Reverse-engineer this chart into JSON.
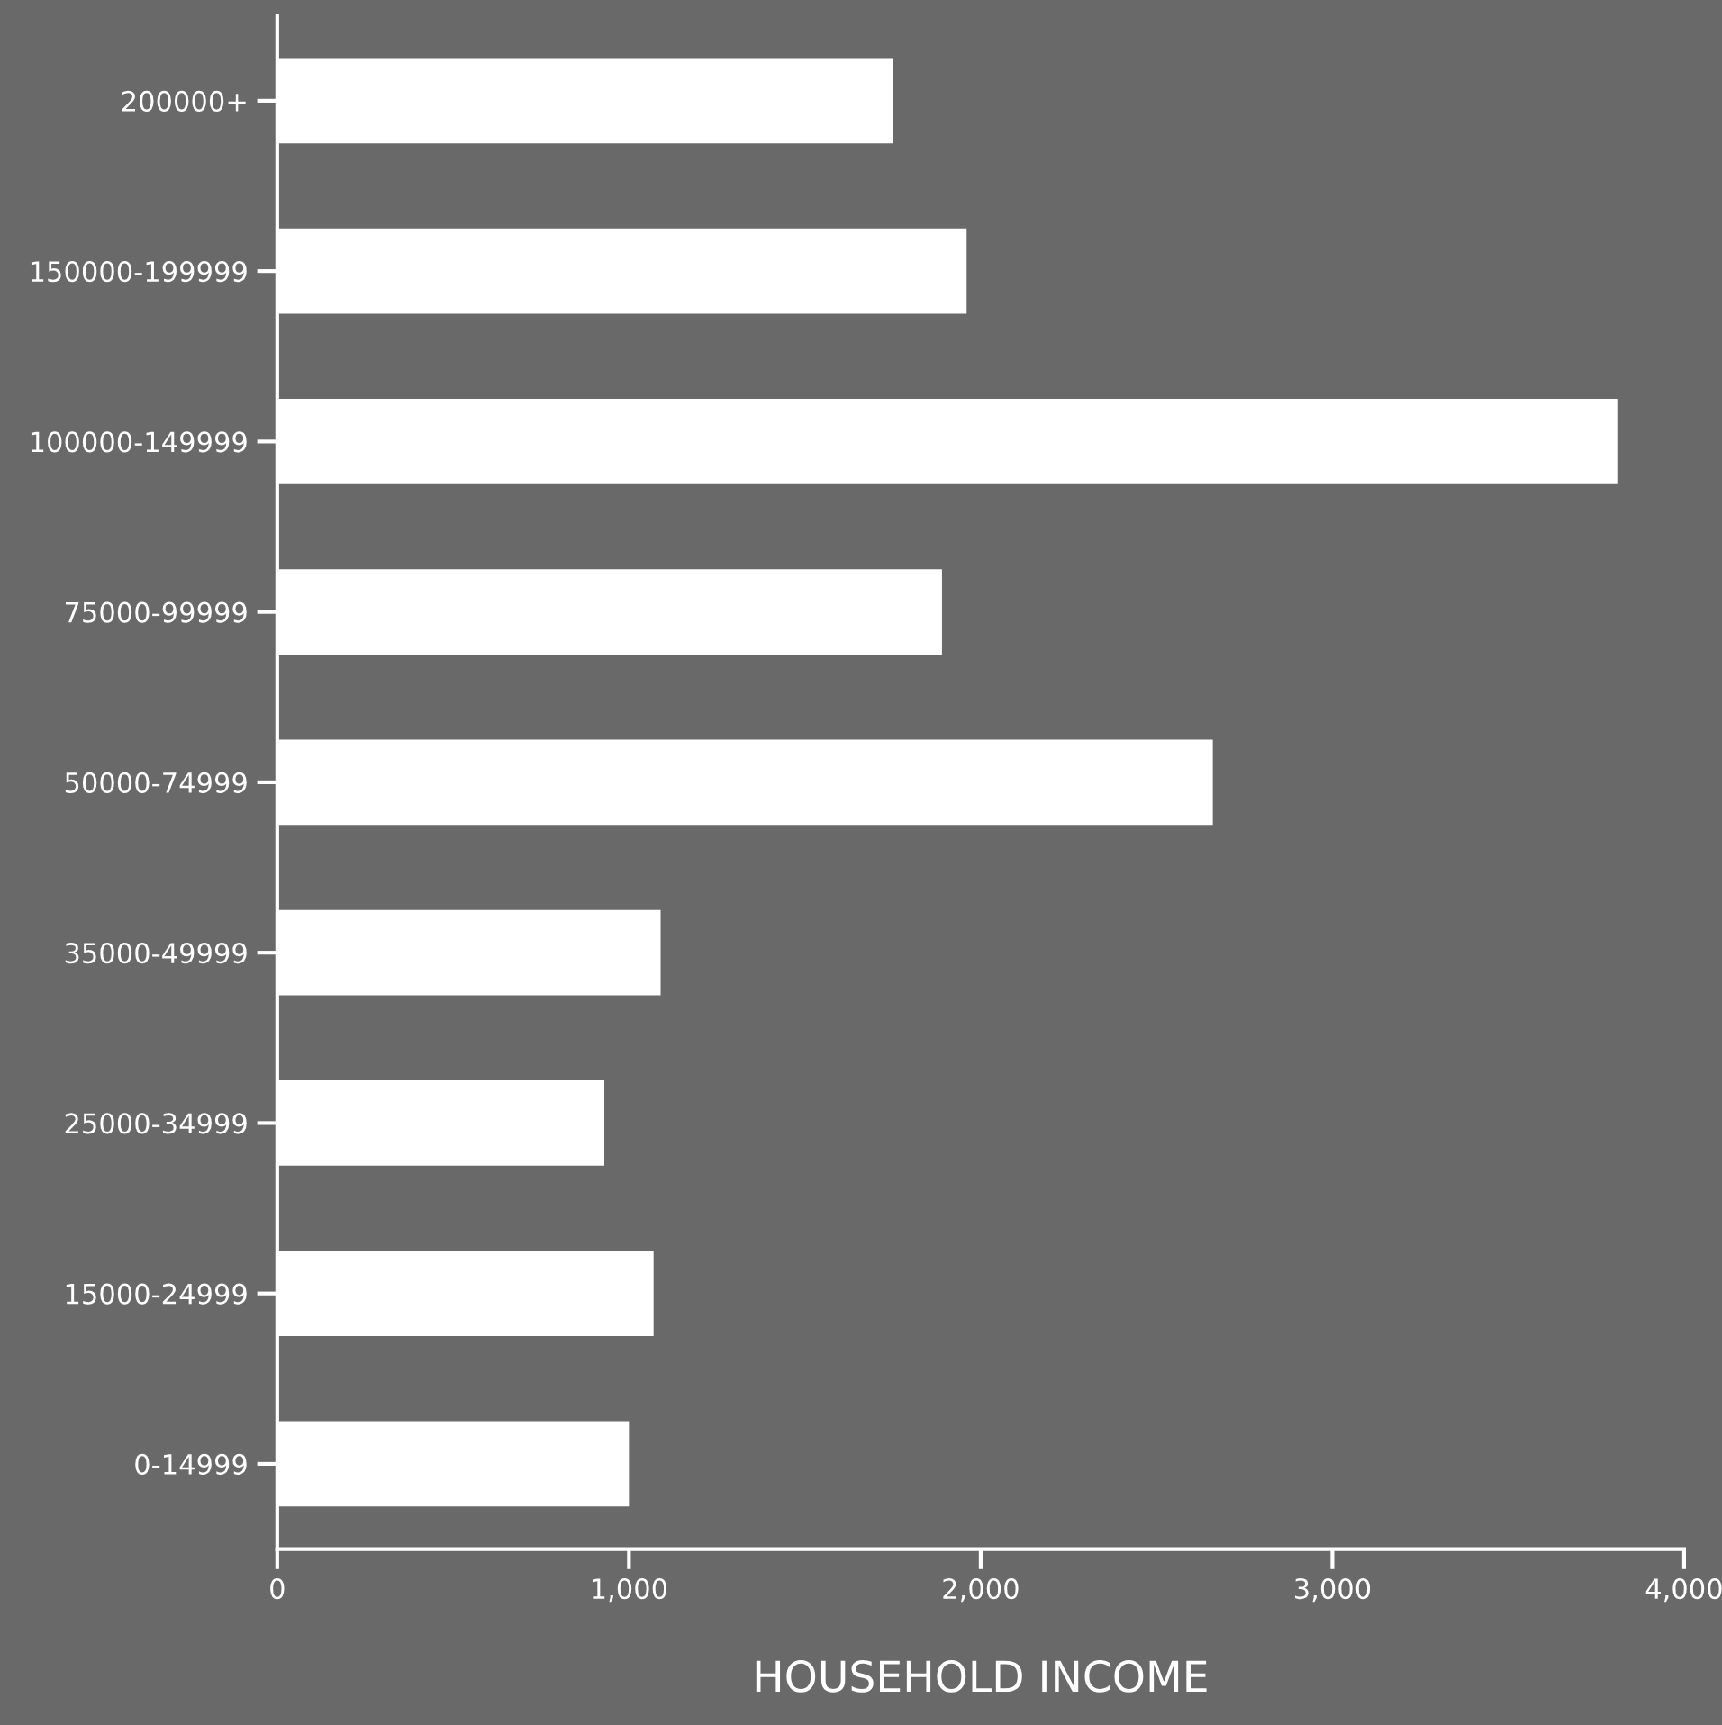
{
  "chart_data": {
    "type": "bar",
    "orientation": "horizontal",
    "xlabel": "HOUSEHOLD INCOME",
    "categories": [
      "200000+",
      "150000-199999",
      "100000-149999",
      "75000-99999",
      "50000-74999",
      "35000-49999",
      "25000-34999",
      "15000-24999",
      "0-14999"
    ],
    "values": [
      1750,
      1960,
      3810,
      1890,
      2660,
      1090,
      930,
      1070,
      1000
    ],
    "color": "#ffffff",
    "xlim": [
      0,
      4000
    ],
    "xticks": [
      0,
      {
        "value": 1000,
        "label": "1,000"
      },
      {
        "value": 2000,
        "label": "2,000"
      },
      {
        "value": 3000,
        "label": "3,000"
      },
      {
        "value": 4000,
        "label": "4,000"
      }
    ],
    "grid": false,
    "legend": false
  }
}
